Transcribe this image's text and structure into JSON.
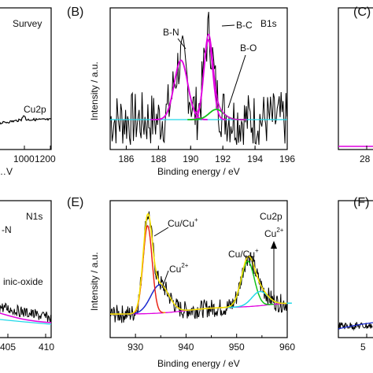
{
  "colors": {
    "raw": "#000000",
    "fit_magenta": "#e000e0",
    "fit_orange": "#f59a00",
    "fit_yellow": "#f5e000",
    "fit_red": "#e8102a",
    "fit_green": "#12c21a",
    "fit_blue": "#1a2ad0",
    "background_line": "#22d8e8"
  },
  "chart_data": [
    {
      "id": "A",
      "type": "line",
      "panel_label": "",
      "tag": "Survey",
      "xlabel": "…V",
      "ylabel": "",
      "xticks": [
        "1000",
        "1200"
      ],
      "annotations": [
        "Cu2p"
      ],
      "xlim": [
        860,
        1200
      ]
    },
    {
      "id": "B",
      "type": "line",
      "panel_label": "(B)",
      "tag": "B1s",
      "xlabel": "Binding energy / eV",
      "ylabel": "Intensity / a.u.",
      "xlim": [
        185,
        196
      ],
      "xticks": [
        "186",
        "188",
        "190",
        "192",
        "194",
        "196"
      ],
      "annotations": [
        "B-N",
        "B-C",
        "B-O"
      ],
      "series": [
        {
          "name": "B-N",
          "center": 189.4,
          "height": 0.58,
          "sigma": 0.42
        },
        {
          "name": "B-C",
          "center": 191.1,
          "height": 0.78,
          "sigma": 0.28
        },
        {
          "name": "B-O",
          "center": 191.6,
          "height": 0.1,
          "sigma": 0.45
        }
      ]
    },
    {
      "id": "C",
      "type": "line",
      "panel_label": "(C)",
      "tag": "",
      "xlabel": "",
      "ylabel": "",
      "xticks": [
        "28"
      ]
    },
    {
      "id": "D",
      "type": "line",
      "panel_label": "",
      "tag": "N1s",
      "xlabel": "",
      "ylabel": "",
      "xticks": [
        "405",
        "410"
      ],
      "annotations": [
        "-N",
        "inic-oxide"
      ]
    },
    {
      "id": "E",
      "type": "line",
      "panel_label": "(E)",
      "tag": "Cu2p",
      "xlabel": "Binding energy / eV",
      "ylabel": "Intensity / a.u.",
      "xlim": [
        925,
        960
      ],
      "xticks": [
        "930",
        "940",
        "950",
        "960"
      ],
      "annotations": [
        {
          "text": "Cu/Cu",
          "sup": "+"
        },
        {
          "text": "Cu",
          "sup": "2+"
        },
        {
          "text": "Cu/Cu",
          "sup": "+"
        },
        {
          "text": "Cu",
          "sup": "2+"
        }
      ],
      "series": [
        {
          "name": "Cu/Cu+ 2p3/2",
          "center": 932.4,
          "height": 0.62,
          "sigma": 0.9
        },
        {
          "name": "Cu2+ 2p3/2",
          "center": 934.8,
          "height": 0.2,
          "sigma": 1.8
        },
        {
          "name": "Cu/Cu+ 2p1/2",
          "center": 952.2,
          "height": 0.32,
          "sigma": 1.3
        },
        {
          "name": "Cu2+ 2p1/2",
          "center": 954.6,
          "height": 0.1,
          "sigma": 1.6
        }
      ]
    },
    {
      "id": "F",
      "type": "line",
      "panel_label": "(F)",
      "tag": "",
      "xlabel": "",
      "ylabel": "",
      "xticks": [
        "5"
      ]
    }
  ]
}
